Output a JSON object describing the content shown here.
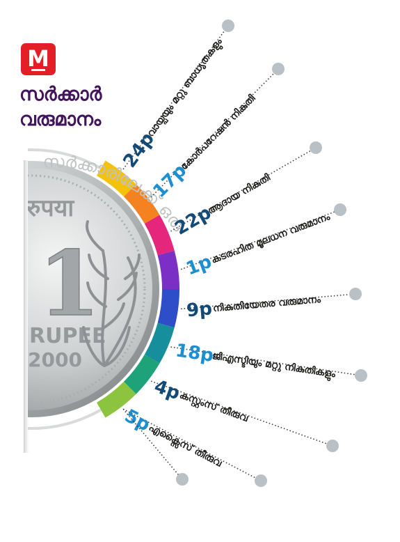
{
  "brand": {
    "logo_letter": "M",
    "color": "#e31e26"
  },
  "title": {
    "line1": "സർക്കാർ",
    "line2": "വരുമാനം",
    "color": "#43145e"
  },
  "coin": {
    "arc_text": "സർക്കാരിലേക്ക് ഒരു രൂപ എത്തുമ്പോൾ",
    "face_top": "रुपया",
    "denomination": "1",
    "face_bottom": "RUPEE",
    "year": "2000"
  },
  "items": [
    {
      "value": "24p",
      "label": "വായ്പയും മറ്റു ബാധ്യതകളും",
      "color": "#f4c20d",
      "value_color": "#134a76"
    },
    {
      "value": "17p",
      "label": "കോർപറേഷൻ നികുതി",
      "color": "#f58220",
      "value_color": "#1d8fd1"
    },
    {
      "value": "22p",
      "label": "ആദായ നികുതി",
      "color": "#e5267c",
      "value_color": "#134a76"
    },
    {
      "value": "1p",
      "label": "കടരഹിത മൂലധന വരുമാനം",
      "color": "#7b2fc4",
      "value_color": "#1d8fd1"
    },
    {
      "value": "9p",
      "label": "നികുതിയേതര വരുമാനം",
      "color": "#2e4ec9",
      "value_color": "#134a76"
    },
    {
      "value": "18p",
      "label": "ജിഎസ്ടിയും മറ്റു നികുതികളും",
      "color": "#168e9c",
      "value_color": "#1d8fd1"
    },
    {
      "value": "4p",
      "label": "കസ്റ്റംസ് തീരുവ",
      "color": "#1ea27a",
      "value_color": "#134a76"
    },
    {
      "value": "5p",
      "label": "എക്സൈസ് തീരുവ",
      "color": "#8cc43f",
      "value_color": "#1d8fd1"
    }
  ],
  "colors": {
    "dot": "#b9c1c6",
    "leader": "#3a3a3a",
    "coin_metal": "#c8cbcc",
    "label_text": "#1d1d1b"
  }
}
